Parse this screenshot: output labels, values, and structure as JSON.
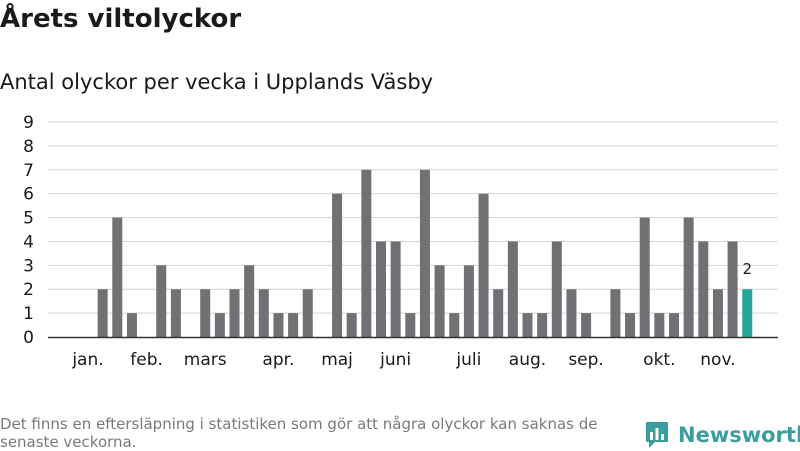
{
  "title": "Årets viltolyckor",
  "subtitle": "Antal olyckor per vecka i Upplands Väsby",
  "footnote": "Det finns en eftersläpning i statistiken som gör att några olyckor kan saknas de senaste veckorna.",
  "brand": {
    "name": "Newsworthy"
  },
  "colors": {
    "bar": "#717075",
    "highlight": "#26a69a",
    "grid": "#d4d4d4",
    "axis": "#333333",
    "brand": "#3a9e9e"
  },
  "chart_data": {
    "type": "bar",
    "title": "Antal olyckor per vecka i Upplands Väsby",
    "xlabel": "",
    "ylabel": "",
    "ylim": [
      0,
      9
    ],
    "yticks": [
      0,
      1,
      2,
      3,
      4,
      5,
      6,
      7,
      8,
      9
    ],
    "weeks": [
      1,
      2,
      3,
      4,
      5,
      6,
      7,
      8,
      9,
      10,
      11,
      12,
      13,
      14,
      15,
      16,
      17,
      18,
      19,
      20,
      21,
      22,
      23,
      24,
      25,
      26,
      27,
      28,
      29,
      30,
      31,
      32,
      33,
      34,
      35,
      36,
      37,
      38,
      39,
      40,
      41,
      42,
      43,
      44,
      45,
      46
    ],
    "values": [
      0,
      2,
      5,
      1,
      0,
      3,
      2,
      0,
      2,
      1,
      2,
      3,
      2,
      1,
      1,
      2,
      0,
      6,
      1,
      7,
      4,
      4,
      1,
      7,
      3,
      1,
      3,
      6,
      2,
      4,
      1,
      1,
      4,
      2,
      1,
      0,
      2,
      1,
      5,
      1,
      1,
      5,
      4,
      2,
      4,
      2
    ],
    "highlight_index": 45,
    "highlight_label": "2",
    "month_labels": [
      {
        "label": "jan.",
        "week": 1
      },
      {
        "label": "feb.",
        "week": 5
      },
      {
        "label": "mars",
        "week": 9
      },
      {
        "label": "apr.",
        "week": 14
      },
      {
        "label": "maj",
        "week": 18
      },
      {
        "label": "juni",
        "week": 22
      },
      {
        "label": "juli",
        "week": 27
      },
      {
        "label": "aug.",
        "week": 31
      },
      {
        "label": "sep.",
        "week": 35
      },
      {
        "label": "okt.",
        "week": 40
      },
      {
        "label": "nov.",
        "week": 44
      }
    ]
  }
}
